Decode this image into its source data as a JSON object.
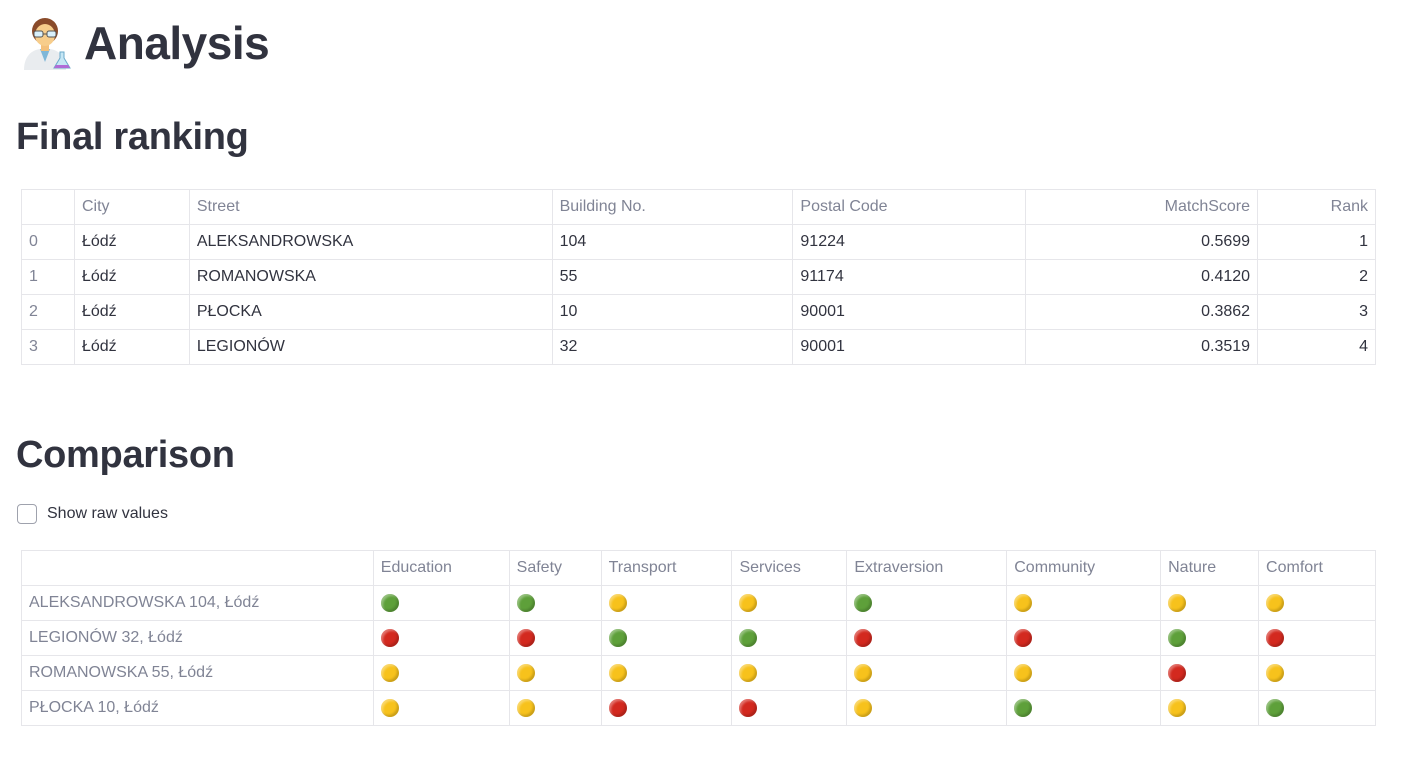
{
  "app": {
    "title": "Analysis",
    "title_icon": "scientist-emoji-icon"
  },
  "ranking": {
    "heading": "Final ranking",
    "columns": [
      "",
      "City",
      "Street",
      "Building No.",
      "Postal Code",
      "MatchScore",
      "Rank"
    ],
    "rows": [
      {
        "index": "0",
        "city": "Łódź",
        "street": "ALEKSANDROWSKA",
        "building": "104",
        "postal": "91224",
        "score": "0.5699",
        "rank": "1"
      },
      {
        "index": "1",
        "city": "Łódź",
        "street": "ROMANOWSKA",
        "building": "55",
        "postal": "91174",
        "score": "0.4120",
        "rank": "2"
      },
      {
        "index": "2",
        "city": "Łódź",
        "street": "PŁOCKA",
        "building": "10",
        "postal": "90001",
        "score": "0.3862",
        "rank": "3"
      },
      {
        "index": "3",
        "city": "Łódź",
        "street": "LEGIONÓW",
        "building": "32",
        "postal": "90001",
        "score": "0.3519",
        "rank": "4"
      }
    ]
  },
  "comparison": {
    "heading": "Comparison",
    "checkbox_label": "Show raw values",
    "checkbox_checked": false,
    "columns": [
      "",
      "Education",
      "Safety",
      "Transport",
      "Services",
      "Extraversion",
      "Community",
      "Nature",
      "Comfort"
    ],
    "colors": {
      "green": "#5ea03a",
      "yellow": "#f7c21c",
      "red": "#d3291f"
    },
    "rows": [
      {
        "label": "ALEKSANDROWSKA 104, Łódź",
        "values": [
          "green",
          "green",
          "yellow",
          "yellow",
          "green",
          "yellow",
          "yellow",
          "yellow"
        ]
      },
      {
        "label": "LEGIONÓW 32, Łódź",
        "values": [
          "red",
          "red",
          "green",
          "green",
          "red",
          "red",
          "green",
          "red"
        ]
      },
      {
        "label": "ROMANOWSKA 55, Łódź",
        "values": [
          "yellow",
          "yellow",
          "yellow",
          "yellow",
          "yellow",
          "yellow",
          "red",
          "yellow"
        ]
      },
      {
        "label": "PŁOCKA 10, Łódź",
        "values": [
          "yellow",
          "yellow",
          "red",
          "red",
          "yellow",
          "green",
          "yellow",
          "green"
        ]
      }
    ]
  }
}
